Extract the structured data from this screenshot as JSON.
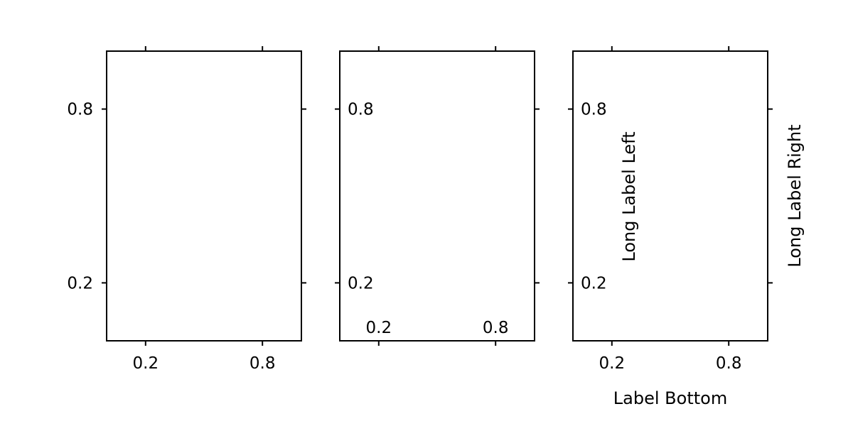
{
  "chart_data": [
    {
      "type": "scatter",
      "xlim": [
        0,
        1
      ],
      "ylim": [
        0,
        1
      ],
      "xticks": [
        0.2,
        0.8
      ],
      "yticks": [
        0.2,
        0.8
      ],
      "xtick_labels": [
        "0.2",
        "0.8"
      ],
      "ytick_labels": [
        "0.2",
        "0.8"
      ],
      "xtick_label_position": "bottom",
      "ytick_label_position": "left",
      "xlabel": "",
      "ylabel": "",
      "grid": false
    },
    {
      "type": "scatter",
      "xlim": [
        0,
        1
      ],
      "ylim": [
        0,
        1
      ],
      "xticks": [
        0.2,
        0.8
      ],
      "yticks": [
        0.2,
        0.8
      ],
      "xtick_labels": [
        "0.2",
        "0.8"
      ],
      "ytick_labels": [
        "0.2",
        "0.8"
      ],
      "xtick_label_position": "inside-bottom",
      "ytick_label_position": "inside-left",
      "xlabel": "",
      "ylabel": "",
      "grid": false
    },
    {
      "type": "scatter",
      "xlim": [
        0,
        1
      ],
      "ylim": [
        0,
        1
      ],
      "xticks": [
        0.2,
        0.8
      ],
      "yticks": [
        0.2,
        0.8
      ],
      "xtick_labels": [
        "0.2",
        "0.8"
      ],
      "ytick_labels": [
        "0.2",
        "0.8"
      ],
      "xtick_label_position": "bottom",
      "ytick_label_position": "inside-left",
      "xlabel": "Label Bottom",
      "ylabel_left": "Long Label Left",
      "ylabel_right": "Long Label Right",
      "grid": false
    }
  ]
}
